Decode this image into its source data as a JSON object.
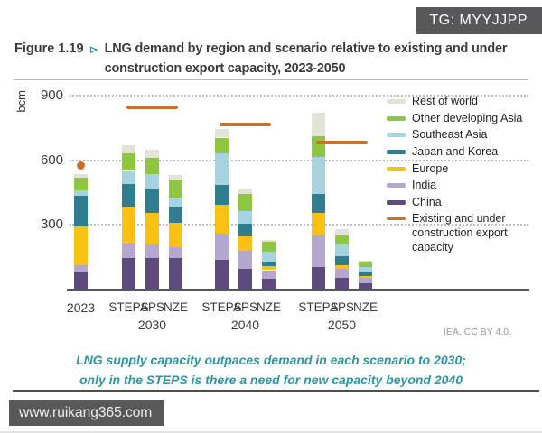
{
  "badge": {
    "text": "TG: MYYJJPP"
  },
  "figure": {
    "label": "Figure 1.19",
    "marker": "⊳",
    "title": "LNG demand by region and scenario relative to existing and under construction export capacity, 2023-2050"
  },
  "attribution": "IEA. CC BY 4.0.",
  "caption": {
    "line1": "LNG supply capacity outpaces demand in each scenario to 2030;",
    "line2": "only in the STEPS is there a need for new capacity beyond 2040"
  },
  "watermark": "www.ruikang365.com",
  "colors": {
    "accent_teal": "#2e93a3",
    "capacity_orange": "#c9712a",
    "badge_gray": "#58585b",
    "axis_text": "#3c3c3c"
  },
  "chart_data": {
    "type": "bar",
    "stacked": true,
    "unit": "bcm",
    "ylabel": "bcm",
    "ylim": [
      0,
      900
    ],
    "yticks": [
      300,
      600,
      900
    ],
    "grid": "dotted-horizontal",
    "legend_position": "top-right",
    "columns": [
      "2023",
      "STEPS 2030",
      "APS 2030",
      "NZE 2030",
      "STEPS 2040",
      "APS 2040",
      "NZE 2040",
      "STEPS 2050",
      "APS 2050",
      "NZE 2050"
    ],
    "series": [
      {
        "name": "China",
        "color": "#5d4a7c",
        "values": [
          85,
          145,
          145,
          145,
          140,
          95,
          50,
          105,
          55,
          30
        ]
      },
      {
        "name": "India",
        "color": "#b4a7cd",
        "values": [
          30,
          70,
          65,
          50,
          120,
          85,
          40,
          145,
          40,
          25
        ]
      },
      {
        "name": "Europe",
        "color": "#fbc112",
        "values": [
          180,
          165,
          145,
          115,
          135,
          65,
          20,
          105,
          20,
          8
        ]
      },
      {
        "name": "Japan and Korea",
        "color": "#2f7e90",
        "values": [
          140,
          110,
          115,
          75,
          90,
          60,
          20,
          90,
          40,
          20
        ]
      },
      {
        "name": "Southeast Asia",
        "color": "#a6d3e0",
        "values": [
          25,
          60,
          65,
          40,
          145,
          60,
          45,
          170,
          55,
          22
        ]
      },
      {
        "name": "Other developing Asia",
        "color": "#8ec63f",
        "values": [
          60,
          80,
          75,
          85,
          75,
          80,
          45,
          95,
          40,
          27
        ]
      },
      {
        "name": "Rest of world",
        "color": "#e3e2d5",
        "values": [
          15,
          40,
          40,
          20,
          40,
          20,
          10,
          110,
          30,
          3
        ]
      }
    ],
    "groups": [
      {
        "year": "2023",
        "scenarios": null,
        "capacity": {
          "marker": "dot",
          "value": 575
        }
      },
      {
        "year": "2030",
        "scenarios": [
          "STEPS",
          "APS",
          "NZE"
        ],
        "capacity": {
          "marker": "line",
          "value": 845
        }
      },
      {
        "year": "2040",
        "scenarios": [
          "STEPS",
          "APS",
          "NZE"
        ],
        "capacity": {
          "marker": "line",
          "value": 765
        }
      },
      {
        "year": "2050",
        "scenarios": [
          "STEPS",
          "APS",
          "NZE"
        ],
        "capacity": {
          "marker": "line",
          "value": 680
        }
      }
    ],
    "legend": [
      {
        "label": "Rest of world",
        "color": "#e3e2d5",
        "type": "box"
      },
      {
        "label": "Other developing Asia",
        "color": "#8ec63f",
        "type": "box"
      },
      {
        "label": "Southeast Asia",
        "color": "#a6d3e0",
        "type": "box"
      },
      {
        "label": "Japan and Korea",
        "color": "#2f7e90",
        "type": "box"
      },
      {
        "label": "Europe",
        "color": "#fbc112",
        "type": "box"
      },
      {
        "label": "India",
        "color": "#b4a7cd",
        "type": "box"
      },
      {
        "label": "China",
        "color": "#5d4a7c",
        "type": "box"
      },
      {
        "label": "Existing and under construction export capacity",
        "color": "#c9712a",
        "type": "line"
      }
    ]
  }
}
